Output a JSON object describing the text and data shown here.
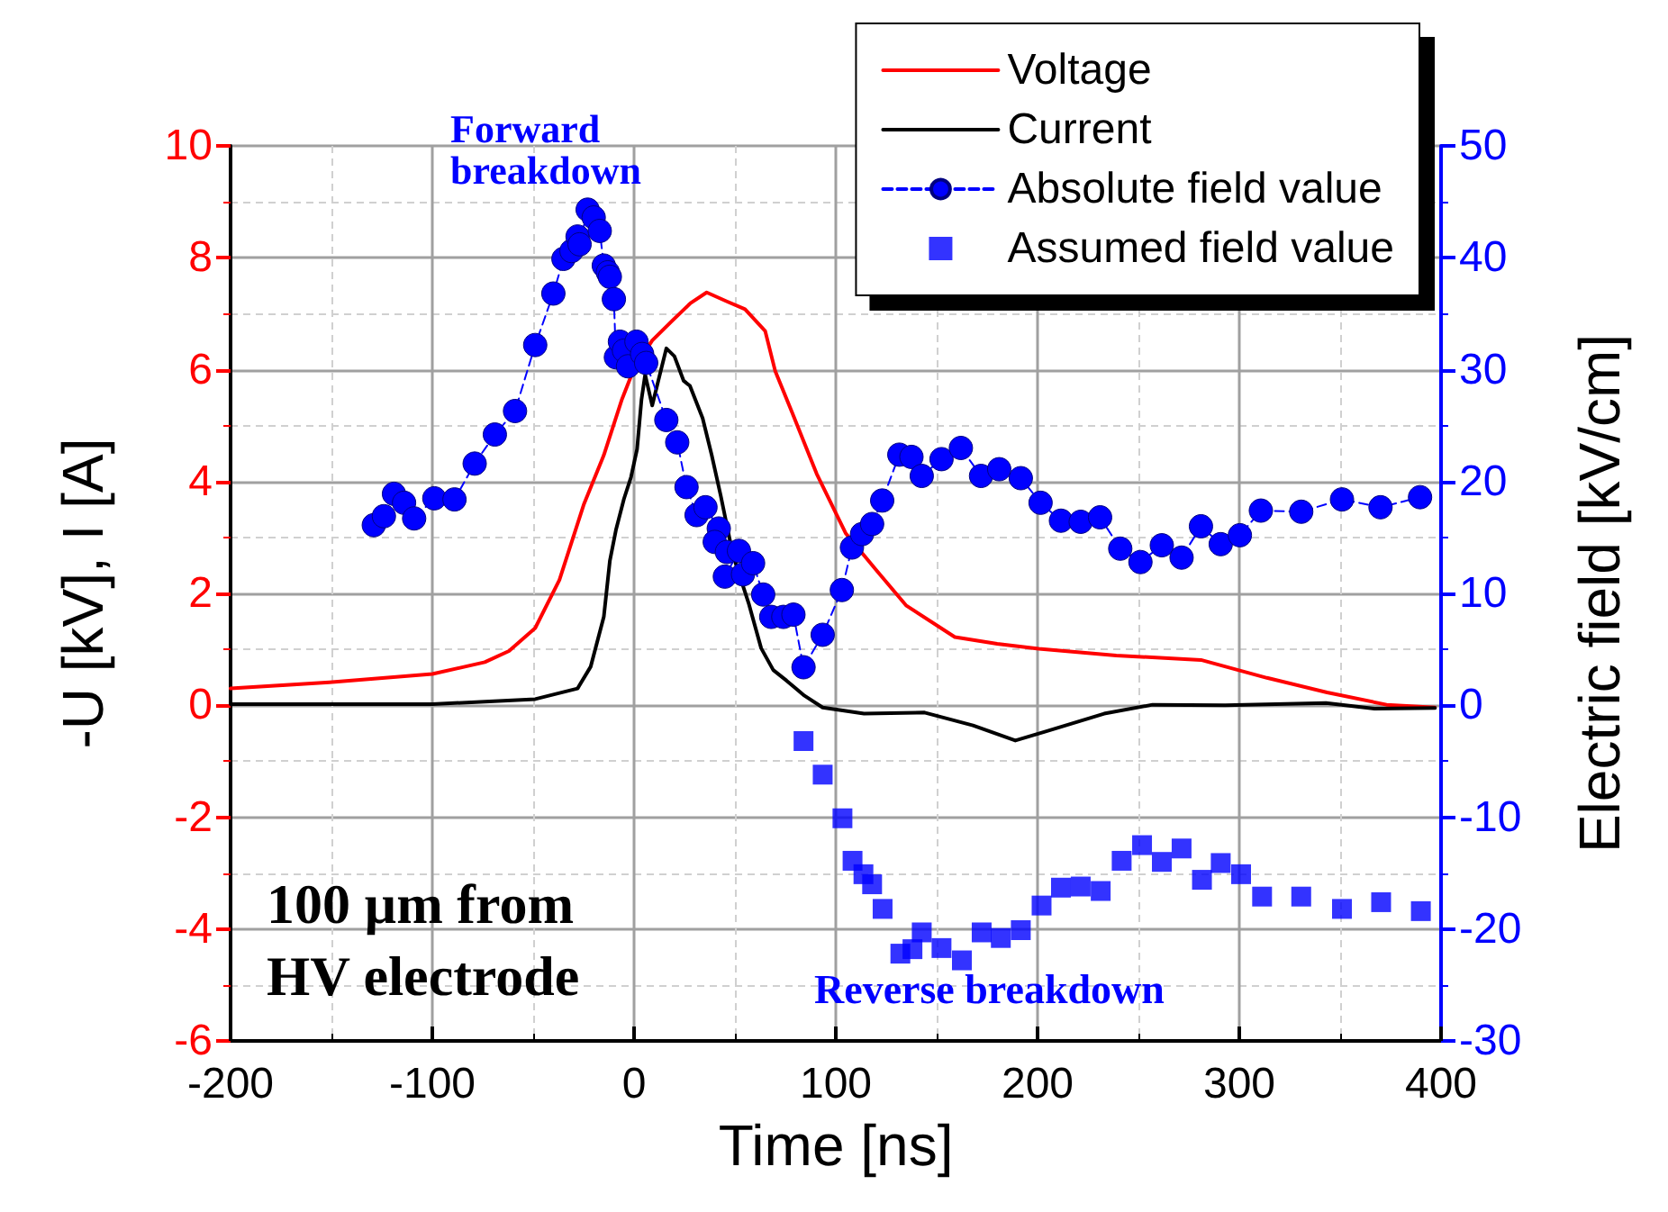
{
  "chart_data": {
    "type": "line",
    "xlabel": "Time [ns]",
    "ylabel": "-U [kV], I [A]",
    "y2label": "Electric field [kV/cm]",
    "xlim": [
      -200,
      400
    ],
    "xticks": [
      -200,
      -100,
      0,
      100,
      200,
      300,
      400
    ],
    "ylim": [
      -6,
      10
    ],
    "yticks": [
      -6,
      -4,
      -2,
      0,
      2,
      4,
      6,
      8,
      10
    ],
    "y2lim": [
      -30,
      50
    ],
    "y2ticks": [
      -30,
      -20,
      -10,
      0,
      10,
      20,
      30,
      40,
      50
    ],
    "grid": true,
    "legend": "top right",
    "annotations": [
      "Forward breakdown",
      "100 µm from HV electrode",
      "Reverse breakdown"
    ],
    "series": [
      {
        "name": "Voltage",
        "color": "#ff0000",
        "marker": "none",
        "line_style": "solid",
        "x": [
          -200,
          -151,
          -100,
          -74,
          -62,
          -49,
          -37,
          -25,
          -15,
          -6,
          0,
          9,
          18.5,
          28,
          36,
          46,
          55,
          65,
          70,
          78.6,
          90.5,
          105,
          120,
          135,
          159,
          180,
          200.6,
          239,
          281,
          313.7,
          343.5,
          373,
          397
        ],
        "values": [
          0.3,
          0.41,
          0.56,
          0.77,
          0.97,
          1.38,
          2.24,
          3.58,
          4.47,
          5.47,
          6.02,
          6.52,
          6.86,
          7.19,
          7.38,
          7.22,
          7.08,
          6.69,
          5.97,
          5.21,
          4.14,
          3.07,
          2.42,
          1.78,
          1.22,
          1.1,
          1.01,
          0.89,
          0.81,
          0.49,
          0.23,
          0.01,
          -0.04
        ]
      },
      {
        "name": "Current",
        "color": "#000000",
        "marker": "none",
        "line_style": "solid",
        "x": [
          -200,
          -100,
          -49,
          -28,
          -21.5,
          -15,
          -12,
          -9,
          -5,
          -1.5,
          1.5,
          3.7,
          5.5,
          9,
          12,
          16,
          20,
          24.6,
          27.7,
          34,
          38.5,
          43,
          49,
          57,
          63,
          69,
          75.6,
          84.5,
          93.5,
          114,
          144,
          168,
          189,
          204,
          233,
          257,
          293,
          343,
          367,
          397
        ],
        "values": [
          0.02,
          0.02,
          0.11,
          0.3,
          0.69,
          1.58,
          2.58,
          3.13,
          3.69,
          4.08,
          4.58,
          5.47,
          5.91,
          5.36,
          5.8,
          6.38,
          6.24,
          5.8,
          5.71,
          5.13,
          4.47,
          3.74,
          2.69,
          1.8,
          1.02,
          0.63,
          0.44,
          0.17,
          -0.04,
          -0.15,
          -0.13,
          -0.36,
          -0.63,
          -0.47,
          -0.15,
          0.01,
          0,
          0.04,
          -0.06,
          -0.05
        ]
      },
      {
        "name": "Absolute field value",
        "axis": "y2",
        "color": "#0000ff",
        "marker": "circle",
        "line_style": "dashed",
        "x": [
          -129,
          -124,
          -119,
          -114,
          -109,
          -99,
          -89,
          -79,
          -69,
          -59,
          -49,
          -40,
          -35,
          -31,
          -28,
          -27,
          -23,
          -20,
          -17,
          -15,
          -13,
          -12,
          -10,
          -9,
          -7,
          -5,
          -3,
          1.2,
          4,
          6,
          16,
          21.4,
          26,
          31,
          35.4,
          42,
          40,
          46,
          52,
          45,
          54,
          59,
          64,
          68,
          74,
          79,
          84,
          93.5,
          103,
          108,
          113,
          118,
          123,
          131.5,
          137.5,
          142.6,
          152.4,
          162,
          172,
          181,
          191.7,
          201.5,
          211.6,
          221.4,
          231,
          241,
          251,
          261.6,
          271.4,
          281,
          290.8,
          300.3,
          310.7,
          330.7,
          350.9,
          370,
          389.6
        ],
        "values": [
          16.1,
          16.9,
          18.9,
          18.1,
          16.7,
          18.5,
          18.4,
          21.6,
          24.2,
          26.3,
          32.2,
          36.8,
          39.9,
          40.6,
          41.9,
          41.2,
          44.3,
          43.6,
          42.4,
          39.3,
          38.7,
          38.3,
          36.3,
          31.1,
          32.5,
          31.7,
          30.3,
          32.5,
          31.4,
          30.6,
          25.5,
          23.5,
          19.5,
          17,
          17.7,
          15.8,
          14.6,
          13.7,
          13.8,
          11.5,
          11.7,
          12.7,
          9.9,
          7.9,
          7.9,
          8.1,
          3.4,
          6.3,
          10.3,
          14.1,
          15.3,
          16.2,
          18.3,
          22.4,
          22.2,
          20.5,
          22,
          23,
          20.5,
          21.1,
          20.3,
          18.1,
          16.5,
          16.4,
          16.8,
          14,
          12.8,
          14.3,
          13.2,
          16,
          14.4,
          15.2,
          17.4,
          17.3,
          18.4,
          17.7,
          18.6
        ]
      },
      {
        "name": "Assumed field value",
        "type": "scatter",
        "axis": "y2",
        "color": "#0000ff",
        "marker": "square",
        "x": [
          84,
          93.5,
          103.3,
          108.3,
          113.7,
          118,
          123.2,
          132,
          138,
          142.6,
          152.4,
          162.5,
          172.3,
          181.8,
          191.7,
          202,
          211.6,
          221.4,
          231.3,
          241.7,
          251.8,
          261.6,
          271.4,
          281.5,
          290.8,
          300.9,
          311.3,
          330.7,
          350.9,
          370.3,
          390
        ],
        "values": [
          -3.2,
          -6.2,
          -10.1,
          -13.9,
          -15.1,
          -16,
          -18.2,
          -22.2,
          -21.8,
          -20.3,
          -21.7,
          -22.8,
          -20.3,
          -20.8,
          -20.1,
          -17.9,
          -16.3,
          -16.2,
          -16.6,
          -13.9,
          -12.5,
          -14,
          -12.8,
          -15.6,
          -14.1,
          -15.1,
          -17.1,
          -17.1,
          -18.2,
          -17.6,
          -18.4
        ]
      }
    ]
  }
}
